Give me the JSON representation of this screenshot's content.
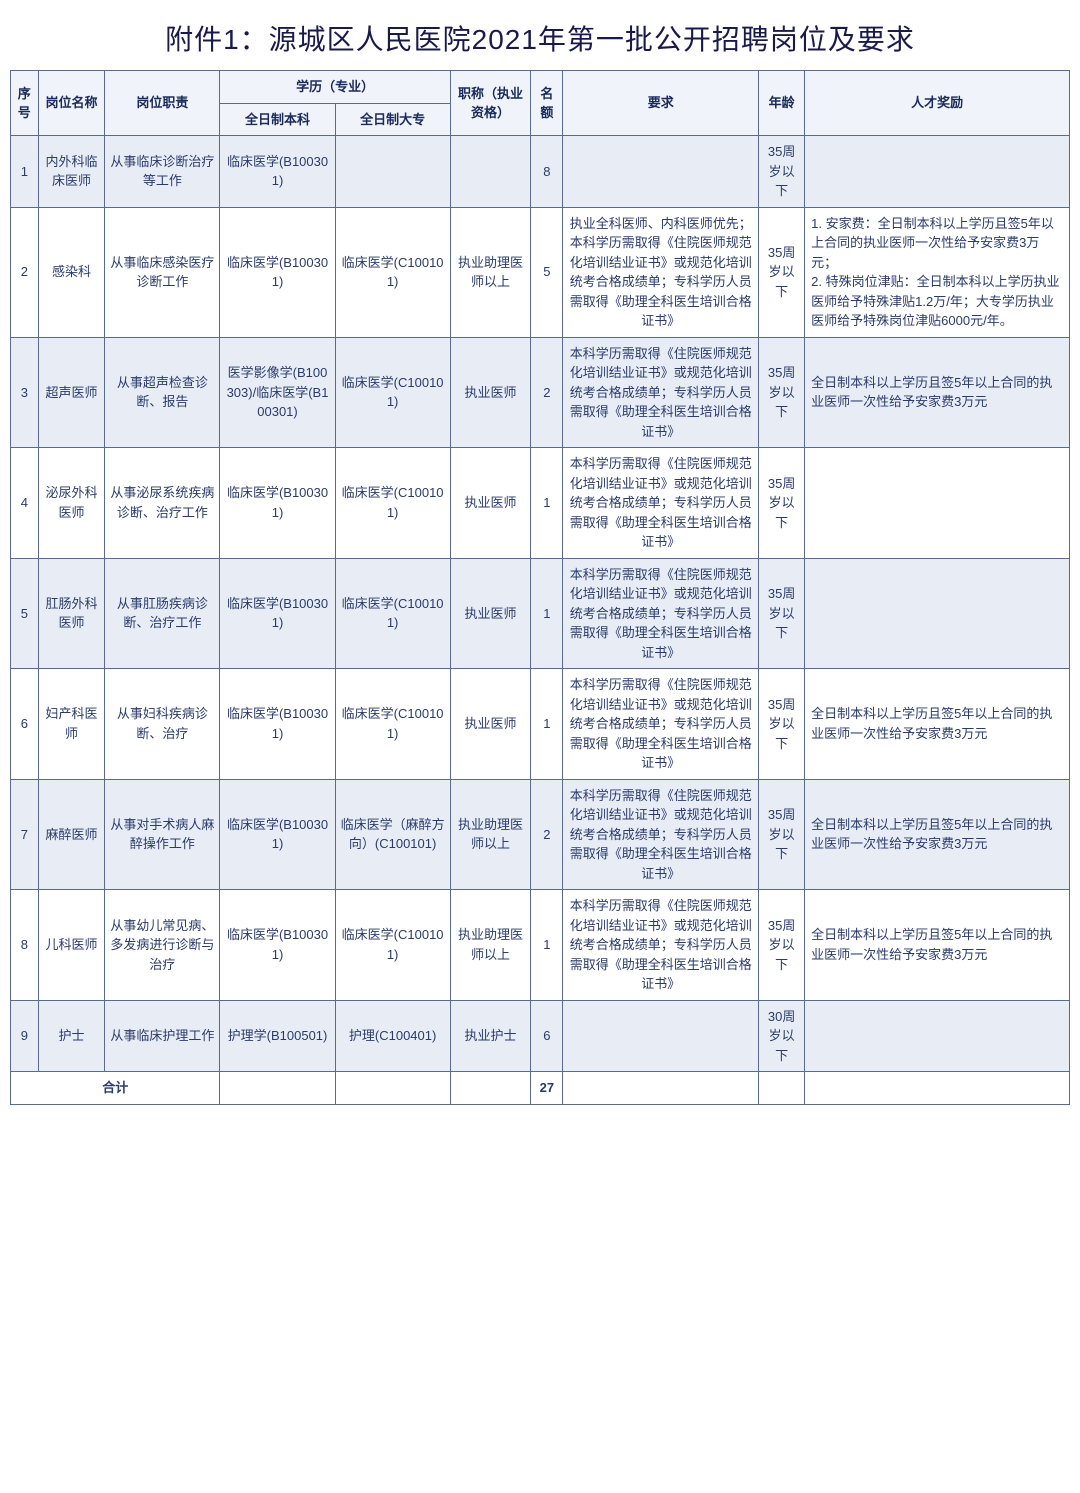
{
  "title": "附件1：源城区人民医院2021年第一批公开招聘岗位及要求",
  "header": {
    "idx": "序号",
    "position": "岗位名称",
    "duty": "岗位职责",
    "edu_group": "学历（专业）",
    "edu_bk": "全日制本科",
    "edu_dz": "全日制大专",
    "cert": "职称（执业资格）",
    "quota": "名额",
    "req": "要求",
    "age": "年龄",
    "award": "人才奖励"
  },
  "rows": [
    {
      "idx": "1",
      "position": "内外科临床医师",
      "duty": "从事临床诊断治疗等工作",
      "bk": "临床医学(B100301)",
      "dz": "",
      "cert": "",
      "quota": "8",
      "req": "",
      "age": "35周岁以下",
      "award": ""
    },
    {
      "idx": "2",
      "position": "感染科",
      "duty": "从事临床感染医疗诊断工作",
      "bk": "临床医学(B100301)",
      "dz": "临床医学(C100101)",
      "cert": "执业助理医师以上",
      "quota": "5",
      "req": "执业全科医师、内科医师优先；本科学历需取得《住院医师规范化培训结业证书》或规范化培训统考合格成绩单；专科学历人员需取得《助理全科医生培训合格证书》",
      "age": "35周岁以下",
      "award": "1. 安家费：全日制本科以上学历且签5年以上合同的执业医师一次性给予安家费3万元；\n2. 特殊岗位津贴：全日制本科以上学历执业医师给予特殊津贴1.2万/年；大专学历执业医师给予特殊岗位津贴6000元/年。"
    },
    {
      "idx": "3",
      "position": "超声医师",
      "duty": "从事超声检查诊断、报告",
      "bk": "医学影像学(B100303)/临床医学(B100301)",
      "dz": "临床医学(C100101)",
      "cert": "执业医师",
      "quota": "2",
      "req": "本科学历需取得《住院医师规范化培训结业证书》或规范化培训统考合格成绩单；专科学历人员需取得《助理全科医生培训合格证书》",
      "age": "35周岁以下",
      "award": "全日制本科以上学历且签5年以上合同的执业医师一次性给予安家费3万元"
    },
    {
      "idx": "4",
      "position": "泌尿外科医师",
      "duty": "从事泌尿系统疾病诊断、治疗工作",
      "bk": "临床医学(B100301)",
      "dz": "临床医学(C100101)",
      "cert": "执业医师",
      "quota": "1",
      "req": "本科学历需取得《住院医师规范化培训结业证书》或规范化培训统考合格成绩单；专科学历人员需取得《助理全科医生培训合格证书》",
      "age": "35周岁以下",
      "award": ""
    },
    {
      "idx": "5",
      "position": "肛肠外科医师",
      "duty": "从事肛肠疾病诊断、治疗工作",
      "bk": "临床医学(B100301)",
      "dz": "临床医学(C100101)",
      "cert": "执业医师",
      "quota": "1",
      "req": "本科学历需取得《住院医师规范化培训结业证书》或规范化培训统考合格成绩单；专科学历人员需取得《助理全科医生培训合格证书》",
      "age": "35周岁以下",
      "award": ""
    },
    {
      "idx": "6",
      "position": "妇产科医师",
      "duty": "从事妇科疾病诊断、治疗",
      "bk": "临床医学(B100301)",
      "dz": "临床医学(C100101)",
      "cert": "执业医师",
      "quota": "1",
      "req": "本科学历需取得《住院医师规范化培训结业证书》或规范化培训统考合格成绩单；专科学历人员需取得《助理全科医生培训合格证书》",
      "age": "35周岁以下",
      "award": "全日制本科以上学历且签5年以上合同的执业医师一次性给予安家费3万元"
    },
    {
      "idx": "7",
      "position": "麻醉医师",
      "duty": "从事对手术病人麻醉操作工作",
      "bk": "临床医学(B100301)",
      "dz": "临床医学（麻醉方向）(C100101)",
      "cert": "执业助理医师以上",
      "quota": "2",
      "req": "本科学历需取得《住院医师规范化培训结业证书》或规范化培训统考合格成绩单；专科学历人员需取得《助理全科医生培训合格证书》",
      "age": "35周岁以下",
      "award": "全日制本科以上学历且签5年以上合同的执业医师一次性给予安家费3万元"
    },
    {
      "idx": "8",
      "position": "儿科医师",
      "duty": "从事幼儿常见病、多发病进行诊断与治疗",
      "bk": "临床医学(B100301)",
      "dz": "临床医学(C100101)",
      "cert": "执业助理医师以上",
      "quota": "1",
      "req": "本科学历需取得《住院医师规范化培训结业证书》或规范化培训统考合格成绩单；专科学历人员需取得《助理全科医生培训合格证书》",
      "age": "35周岁以下",
      "award": "全日制本科以上学历且签5年以上合同的执业医师一次性给予安家费3万元"
    },
    {
      "idx": "9",
      "position": "护士",
      "duty": "从事临床护理工作",
      "bk": "护理学(B100501)",
      "dz": "护理(C100401)",
      "cert": "执业护士",
      "quota": "6",
      "req": "",
      "age": "30周岁以下",
      "award": ""
    }
  ],
  "total": {
    "label": "合计",
    "quota": "27"
  }
}
